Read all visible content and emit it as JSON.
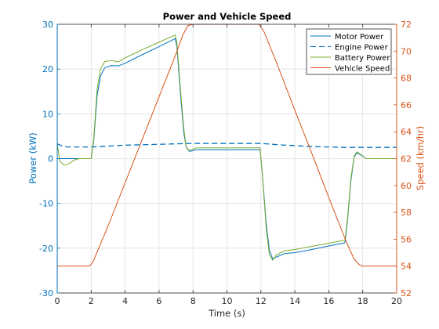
{
  "chart_data": {
    "type": "line",
    "title": "Power and Vehicle Speed",
    "xlabel": "Time (s)",
    "xlim": [
      0,
      20
    ],
    "x_ticks": [
      "0",
      "2",
      "4",
      "6",
      "8",
      "10",
      "12",
      "14",
      "16",
      "18",
      "20"
    ],
    "left_axis": {
      "label": "Power (kW)",
      "ylim": [
        -30,
        30
      ],
      "ticks": [
        "-30",
        "-20",
        "-10",
        "0",
        "10",
        "20",
        "30"
      ],
      "color": "#0072BD"
    },
    "right_axis": {
      "label": "Speed (km/hr)",
      "ylim": [
        52,
        72
      ],
      "ticks": [
        "52",
        "54",
        "56",
        "58",
        "60",
        "62",
        "64",
        "66",
        "68",
        "70",
        "72"
      ],
      "color": "#D95319"
    },
    "grid": true,
    "legend_position": "top-right",
    "series": [
      {
        "name": "Motor Power",
        "axis": "left",
        "color": "#0072BD",
        "dash": "solid",
        "points": [
          [
            0,
            0
          ],
          [
            2,
            0
          ],
          [
            2.15,
            4
          ],
          [
            2.35,
            14
          ],
          [
            2.55,
            18.5
          ],
          [
            2.8,
            20.3
          ],
          [
            3.2,
            20.8
          ],
          [
            3.6,
            20.7
          ],
          [
            4,
            21.3
          ],
          [
            5,
            23.2
          ],
          [
            6,
            25
          ],
          [
            6.95,
            26.8
          ],
          [
            7.05,
            25
          ],
          [
            7.25,
            15
          ],
          [
            7.45,
            6
          ],
          [
            7.6,
            2.5
          ],
          [
            7.8,
            1.6
          ],
          [
            8.2,
            2
          ],
          [
            9,
            2
          ],
          [
            10,
            2
          ],
          [
            11,
            2
          ],
          [
            11.95,
            2
          ],
          [
            12.1,
            -4
          ],
          [
            12.3,
            -14
          ],
          [
            12.5,
            -20.5
          ],
          [
            12.7,
            -22.4
          ],
          [
            12.9,
            -22
          ],
          [
            13.4,
            -21.2
          ],
          [
            14,
            -21
          ],
          [
            15,
            -20.3
          ],
          [
            16,
            -19.5
          ],
          [
            16.95,
            -18.8
          ],
          [
            17.1,
            -14
          ],
          [
            17.3,
            -5
          ],
          [
            17.5,
            0.4
          ],
          [
            17.65,
            1.3
          ],
          [
            17.9,
            0.8
          ],
          [
            18.2,
            0
          ],
          [
            20,
            0
          ]
        ]
      },
      {
        "name": "Engine Power",
        "axis": "left",
        "color": "#0072BD",
        "dash": "dashed",
        "points": [
          [
            0,
            3.3
          ],
          [
            0.3,
            2.8
          ],
          [
            0.6,
            2.6
          ],
          [
            1,
            2.6
          ],
          [
            2,
            2.6
          ],
          [
            3,
            2.8
          ],
          [
            4,
            3
          ],
          [
            5,
            3.1
          ],
          [
            6,
            3.2
          ],
          [
            7,
            3.3
          ],
          [
            8,
            3.4
          ],
          [
            9,
            3.4
          ],
          [
            10,
            3.4
          ],
          [
            11,
            3.4
          ],
          [
            12,
            3.4
          ],
          [
            13,
            3.1
          ],
          [
            14,
            2.9
          ],
          [
            15,
            2.7
          ],
          [
            16,
            2.6
          ],
          [
            17,
            2.5
          ],
          [
            18,
            2.5
          ],
          [
            20,
            2.5
          ]
        ]
      },
      {
        "name": "Battery Power",
        "axis": "left",
        "color": "#77AC30",
        "dash": "solid",
        "points": [
          [
            0,
            3.3
          ],
          [
            0.15,
            -0.5
          ],
          [
            0.4,
            -1.5
          ],
          [
            0.7,
            -1.1
          ],
          [
            1,
            -0.3
          ],
          [
            1.3,
            0
          ],
          [
            2,
            0
          ],
          [
            2.15,
            4.5
          ],
          [
            2.35,
            15.5
          ],
          [
            2.55,
            20
          ],
          [
            2.8,
            21.7
          ],
          [
            3.2,
            21.9
          ],
          [
            3.6,
            21.6
          ],
          [
            4,
            22.5
          ],
          [
            5,
            24.3
          ],
          [
            6,
            26
          ],
          [
            6.95,
            27.6
          ],
          [
            7.05,
            26
          ],
          [
            7.25,
            16
          ],
          [
            7.45,
            7
          ],
          [
            7.6,
            2.5
          ],
          [
            7.8,
            1.8
          ],
          [
            8.2,
            2.4
          ],
          [
            9,
            2.4
          ],
          [
            10,
            2.4
          ],
          [
            11,
            2.4
          ],
          [
            11.95,
            2.4
          ],
          [
            12.1,
            -4
          ],
          [
            12.3,
            -15
          ],
          [
            12.5,
            -21.5
          ],
          [
            12.7,
            -22.7
          ],
          [
            12.9,
            -21.5
          ],
          [
            13.4,
            -20.6
          ],
          [
            14,
            -20.3
          ],
          [
            15,
            -19.6
          ],
          [
            16,
            -18.9
          ],
          [
            16.95,
            -18.2
          ],
          [
            17.1,
            -13.5
          ],
          [
            17.3,
            -4.5
          ],
          [
            17.5,
            0.6
          ],
          [
            17.65,
            1.5
          ],
          [
            17.9,
            0.9
          ],
          [
            18.2,
            0
          ],
          [
            20,
            0
          ]
        ]
      },
      {
        "name": "Vehicle Speed",
        "axis": "right",
        "color": "#D95319",
        "dash": "solid",
        "points": [
          [
            0,
            54
          ],
          [
            1.9,
            54
          ],
          [
            2.1,
            54.3
          ],
          [
            2.4,
            55.2
          ],
          [
            3,
            57
          ],
          [
            4,
            60.2
          ],
          [
            5,
            63.4
          ],
          [
            6,
            66.6
          ],
          [
            7,
            69.8
          ],
          [
            7.4,
            71.2
          ],
          [
            7.7,
            71.9
          ],
          [
            8,
            72
          ],
          [
            9,
            72
          ],
          [
            10,
            72
          ],
          [
            11,
            72
          ],
          [
            11.9,
            72
          ],
          [
            12.2,
            71.4
          ],
          [
            13,
            68.9
          ],
          [
            14,
            65.6
          ],
          [
            15,
            62.4
          ],
          [
            16,
            59.1
          ],
          [
            17,
            55.9
          ],
          [
            17.5,
            54.5
          ],
          [
            17.8,
            54.1
          ],
          [
            18,
            54
          ],
          [
            20,
            54
          ]
        ]
      }
    ]
  }
}
